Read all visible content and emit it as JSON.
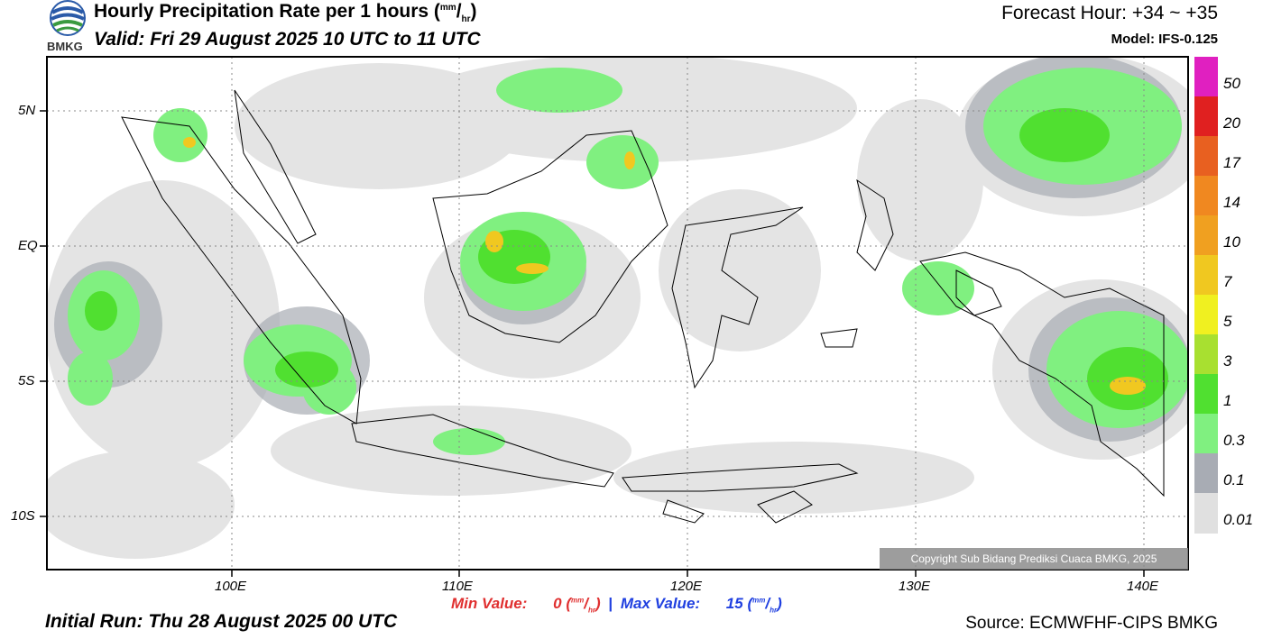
{
  "header": {
    "title_main": "Hourly Precipitation Rate per 1 hours (",
    "title_unit_top": "mm",
    "title_unit_sep": "/",
    "title_unit_bottom": "hr",
    "title_close": ")",
    "valid": "Valid: Fri 29 August 2025 10 UTC to 11 UTC",
    "forecast_hour": "Forecast Hour: +34 ~ +35",
    "model": "Model: IFS-0.125",
    "logo_text": "BMKG"
  },
  "map": {
    "lat_labels": [
      "5N",
      "EQ",
      "5S",
      "10S"
    ],
    "lon_labels": [
      "100E",
      "110E",
      "120E",
      "130E",
      "140E"
    ],
    "copyright": "Copyright Sub Bidang Prediksi Cuaca BMKG, 2025"
  },
  "colorbar": {
    "labels": [
      "50",
      "20",
      "17",
      "14",
      "10",
      "7",
      "5",
      "3",
      "1",
      "0.3",
      "0.1",
      "0.01"
    ],
    "colors": [
      "#e020c0",
      "#e02020",
      "#e86020",
      "#f08820",
      "#f0a020",
      "#f0c820",
      "#f0f020",
      "#a8e030",
      "#50e030",
      "#80f080",
      "#a8acb4",
      "#e0e0e0"
    ]
  },
  "footer": {
    "min_label": "Min Value:",
    "min_value": "0",
    "max_label": "Max Value:",
    "max_value": "15",
    "unit_top": "mm",
    "unit_bottom": "hr",
    "initial_run": "Initial Run: Thu 28 August 2025 00 UTC",
    "source": "Source: ECMWFHF-CIPS BMKG"
  }
}
